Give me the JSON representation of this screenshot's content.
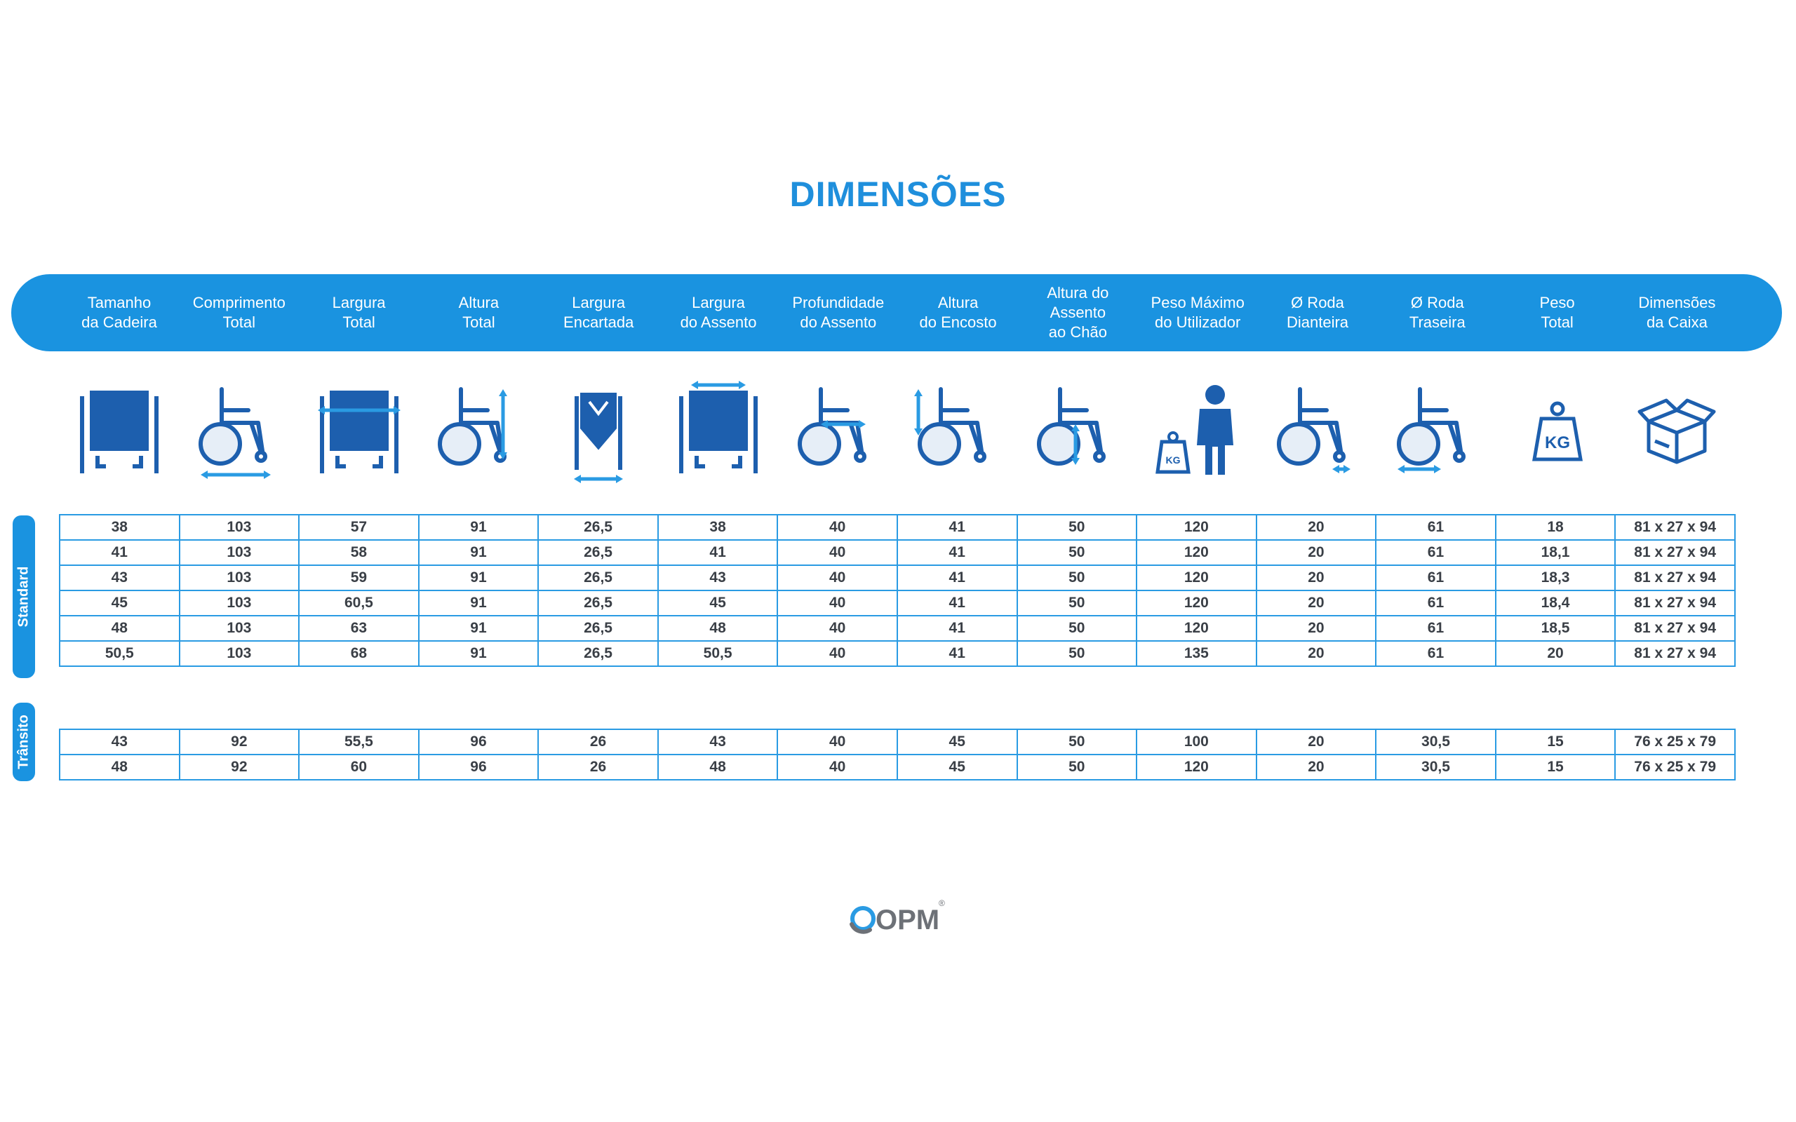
{
  "title": "DIMENSÕES",
  "columns": [
    {
      "line1": "Tamanho",
      "line2": "da Cadeira",
      "icon": "wheelchair-front-icon"
    },
    {
      "line1": "Comprimento",
      "line2": "Total",
      "icon": "wheelchair-length-icon"
    },
    {
      "line1": "Largura",
      "line2": "Total",
      "icon": "wheelchair-width-icon"
    },
    {
      "line1": "Altura",
      "line2": "Total",
      "icon": "wheelchair-height-icon"
    },
    {
      "line1": "Largura",
      "line2": "Encartada",
      "icon": "wheelchair-folded-icon"
    },
    {
      "line1": "Largura",
      "line2": "do Assento",
      "icon": "seat-width-icon"
    },
    {
      "line1": "Profundidade",
      "line2": "do Assento",
      "icon": "seat-depth-icon"
    },
    {
      "line1": "Altura",
      "line2": "do Encosto",
      "icon": "backrest-height-icon"
    },
    {
      "line1": "Altura do Assento",
      "line2": "ao Chão",
      "icon": "seat-floor-height-icon"
    },
    {
      "line1": "Peso Máximo",
      "line2": "do Utilizador",
      "icon": "max-user-weight-icon"
    },
    {
      "line1": "Ø Roda",
      "line2": "Dianteira",
      "icon": "front-wheel-icon"
    },
    {
      "line1": "Ø Roda",
      "line2": "Traseira",
      "icon": "rear-wheel-icon"
    },
    {
      "line1": "Peso",
      "line2": "Total",
      "icon": "weight-kg-icon"
    },
    {
      "line1": "Dimensões",
      "line2": "da Caixa",
      "icon": "box-icon"
    }
  ],
  "icon_weight_label": "KG",
  "groups": {
    "standard": {
      "label": "Standard",
      "rows": [
        [
          "38",
          "103",
          "57",
          "91",
          "26,5",
          "38",
          "40",
          "41",
          "50",
          "120",
          "20",
          "61",
          "18",
          "81 x 27 x 94"
        ],
        [
          "41",
          "103",
          "58",
          "91",
          "26,5",
          "41",
          "40",
          "41",
          "50",
          "120",
          "20",
          "61",
          "18,1",
          "81 x 27 x 94"
        ],
        [
          "43",
          "103",
          "59",
          "91",
          "26,5",
          "43",
          "40",
          "41",
          "50",
          "120",
          "20",
          "61",
          "18,3",
          "81 x 27 x 94"
        ],
        [
          "45",
          "103",
          "60,5",
          "91",
          "26,5",
          "45",
          "40",
          "41",
          "50",
          "120",
          "20",
          "61",
          "18,4",
          "81 x 27 x 94"
        ],
        [
          "48",
          "103",
          "63",
          "91",
          "26,5",
          "48",
          "40",
          "41",
          "50",
          "120",
          "20",
          "61",
          "18,5",
          "81 x 27 x 94"
        ],
        [
          "50,5",
          "103",
          "68",
          "91",
          "26,5",
          "50,5",
          "40",
          "41",
          "50",
          "135",
          "20",
          "61",
          "20",
          "81 x 27 x 94"
        ]
      ]
    },
    "transito": {
      "label": "Trânsito",
      "rows": [
        [
          "43",
          "92",
          "55,5",
          "96",
          "26",
          "43",
          "40",
          "45",
          "50",
          "100",
          "20",
          "30,5",
          "15",
          "76 x 25 x 79"
        ],
        [
          "48",
          "92",
          "60",
          "96",
          "26",
          "48",
          "40",
          "45",
          "50",
          "120",
          "20",
          "30,5",
          "15",
          "76 x 25 x 79"
        ]
      ]
    }
  },
  "logo": {
    "text": "OPM",
    "mark": "®"
  },
  "colors": {
    "accent": "#1a93e0",
    "icon_blue": "#1d5fae",
    "arrow": "#2a9be3",
    "text": "#3a3f46"
  }
}
